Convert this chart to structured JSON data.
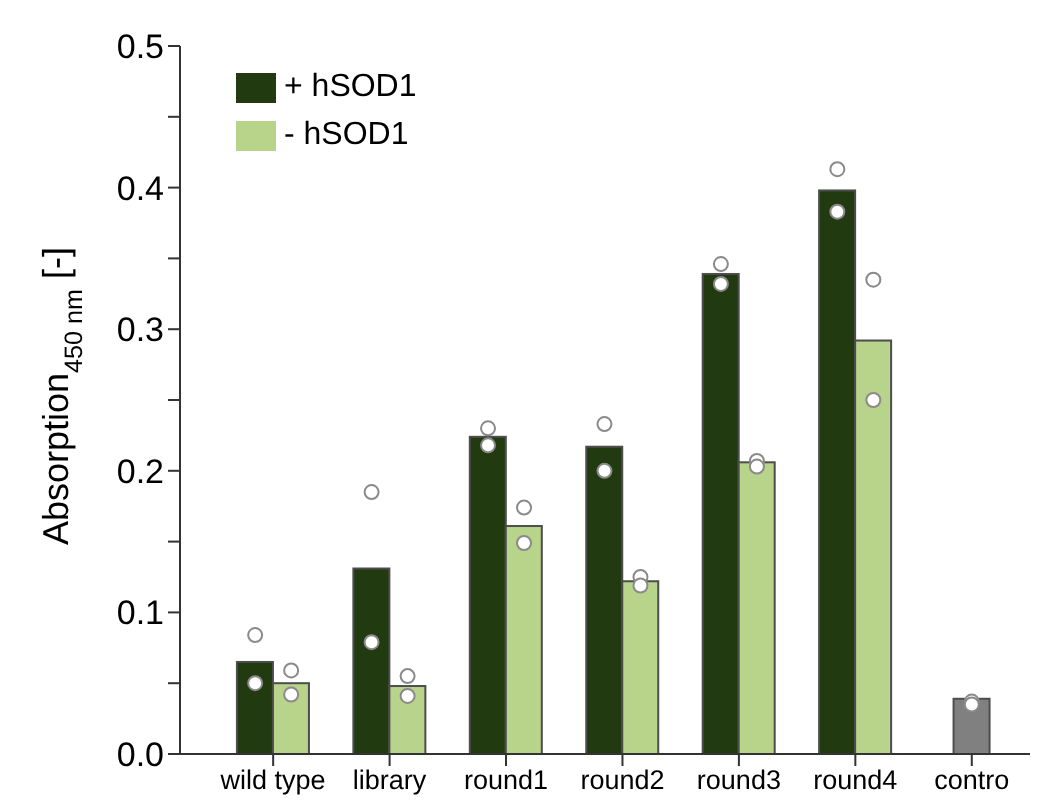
{
  "chart_data": {
    "type": "bar",
    "ylabel": "Absorption$_{450 nm}$ [-]",
    "categories": [
      "wild type",
      "library",
      "round1",
      "round2",
      "round3",
      "round4",
      "contro"
    ],
    "series": [
      {
        "name": "+ hSOD1",
        "color": "#213a10",
        "values": [
          0.065,
          0.131,
          0.224,
          0.217,
          0.339,
          0.398,
          null
        ]
      },
      {
        "name": "- hSOD1",
        "color": "#b8d38a",
        "values": [
          0.05,
          0.048,
          0.161,
          0.122,
          0.206,
          0.292,
          null
        ]
      },
      {
        "color": "#808080",
        "values": [
          null,
          null,
          null,
          null,
          null,
          null,
          0.039
        ]
      },
      {
        "type": "scatter",
        "color": "#ffffff",
        "x": [
          "wild type",
          "wild type",
          "library",
          "library",
          "round1",
          "round1",
          "round2",
          "round2",
          "round3",
          "round3",
          "round4",
          "round4"
        ],
        "values": [
          0.084,
          0.05,
          0.185,
          0.079,
          0.23,
          0.218,
          0.233,
          0.2,
          0.346,
          0.332,
          0.413,
          0.383
        ]
      },
      {
        "type": "scatter",
        "color": "#ffffff",
        "x": [
          "wild type",
          "wild type",
          "library",
          "library",
          "round1",
          "round1",
          "round2",
          "round2",
          "round3",
          "round3",
          "round4",
          "round4"
        ],
        "values": [
          0.059,
          0.042,
          0.055,
          0.041,
          0.174,
          0.149,
          0.125,
          0.119,
          0.207,
          0.203,
          0.335,
          0.25
        ]
      },
      {
        "type": "scatter",
        "color": "#ffffff",
        "x": [
          "contro",
          "contro"
        ],
        "values": [
          0.037,
          0.035
        ]
      }
    ],
    "ylim": [
      0,
      0.5
    ],
    "yticks": [
      {
        "value": 0,
        "label": "0.0"
      },
      {
        "value": 0.05,
        "label": null
      },
      {
        "value": 0.1,
        "label": "0.1"
      },
      {
        "value": 0.15,
        "label": null
      },
      {
        "value": 0.2,
        "label": "0.2"
      },
      {
        "value": 0.25,
        "label": null
      },
      {
        "value": 0.3,
        "label": "0.3"
      },
      {
        "value": 0.35,
        "label": null
      },
      {
        "value": 0.4,
        "label": "0.4"
      },
      {
        "value": 0.45,
        "label": null
      },
      {
        "value": 0.5,
        "label": "0.5"
      }
    ],
    "legend": "top left",
    "marker": "circle"
  }
}
